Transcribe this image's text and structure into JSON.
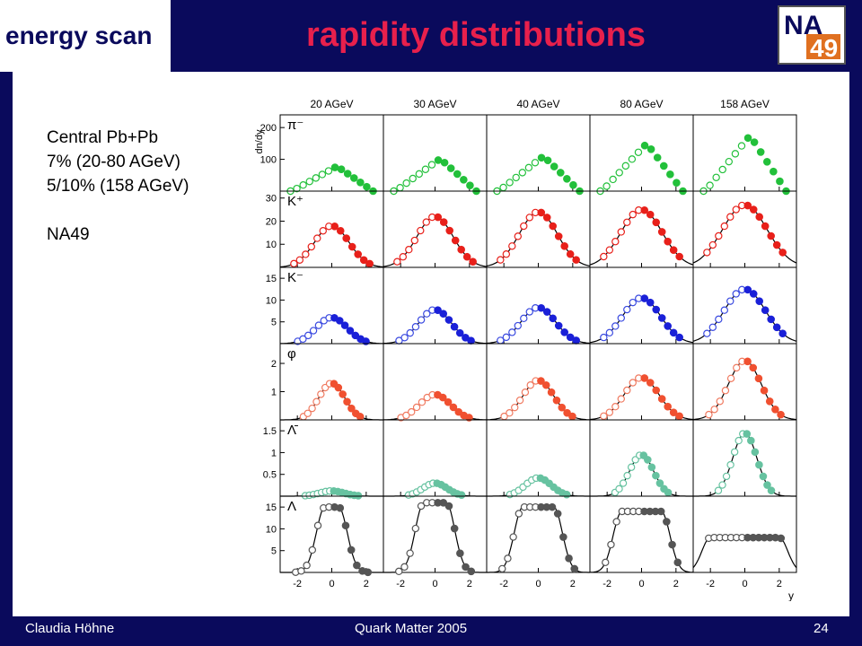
{
  "header": {
    "banner": "energy scan",
    "title": "rapidity distributions"
  },
  "logo": {
    "line1": "NA",
    "line2": "49"
  },
  "info": {
    "lines": [
      "Central Pb+Pb",
      "7% (20-80 AGeV)",
      "5/10% (158 AGeV)",
      "",
      "NA49"
    ]
  },
  "footer": {
    "author": "Claudia Höhne",
    "conference": "Quark Matter 2005",
    "page": "24"
  },
  "chart_data": {
    "type": "scatter",
    "columns": [
      "20 AGeV",
      "30 AGeV",
      "40 AGeV",
      "80 AGeV",
      "158 AGeV"
    ],
    "xlabel": "y",
    "ylabel": "dn/dy",
    "xlim": [
      -3,
      3
    ],
    "xticks": [
      -2,
      0,
      2
    ],
    "rows": [
      {
        "particle": "π⁻",
        "ylim": [
          0,
          240
        ],
        "yticks": [
          100,
          200
        ],
        "color": "#22c03a",
        "open_color": "#22c03a",
        "peaks": [
          78,
          102,
          110,
          150,
          175
        ],
        "widths": [
          1.7,
          1.75,
          1.8,
          1.9,
          2.0
        ],
        "shape": "triangle",
        "curve": false
      },
      {
        "particle": "K⁺",
        "ylim": [
          0,
          33
        ],
        "yticks": [
          10,
          20,
          30
        ],
        "color": "#e8201a",
        "open_color": "#e8201a",
        "peaks": [
          18,
          22,
          24,
          25,
          27
        ],
        "widths": [
          1.0,
          1.05,
          1.1,
          1.2,
          1.3
        ],
        "shape": "gauss",
        "curve": true
      },
      {
        "particle": "K⁻",
        "ylim": [
          0,
          17.5
        ],
        "yticks": [
          5,
          10,
          15
        ],
        "color": "#1a20d8",
        "open_color": "#3a4ae0",
        "peaks": [
          6,
          7.8,
          8.3,
          10.5,
          12.5
        ],
        "widths": [
          0.9,
          0.95,
          1.0,
          1.1,
          1.2
        ],
        "shape": "gauss",
        "curve": true
      },
      {
        "particle": "φ",
        "ylim": [
          0,
          2.7
        ],
        "yticks": [
          1,
          2
        ],
        "color": "#f05030",
        "open_color": "#f07a60",
        "peaks": [
          1.3,
          0.9,
          1.4,
          1.5,
          2.1
        ],
        "widths": [
          0.75,
          0.9,
          0.9,
          1.0,
          0.95
        ],
        "shape": "gauss",
        "curve": true
      },
      {
        "particle": "Λ̄",
        "ylim": [
          0,
          1.75
        ],
        "yticks": [
          0.5,
          1,
          1.5
        ],
        "color": "#66c2a0",
        "open_color": "#66c2a0",
        "peaks": [
          0.12,
          0.3,
          0.42,
          0.95,
          1.45
        ],
        "widths": [
          0.7,
          0.7,
          0.75,
          0.7,
          0.7
        ],
        "shape": "gauss",
        "curve": true
      },
      {
        "particle": "Λ",
        "ylim": [
          0,
          17.5
        ],
        "yticks": [
          5,
          10,
          15
        ],
        "color": "#555555",
        "open_color": "#555555",
        "peaks": [
          15,
          16,
          15,
          14,
          8
        ],
        "widths": [
          1.0,
          1.2,
          1.4,
          1.6,
          3.5
        ],
        "shape": "lambda",
        "curve": true
      }
    ]
  }
}
